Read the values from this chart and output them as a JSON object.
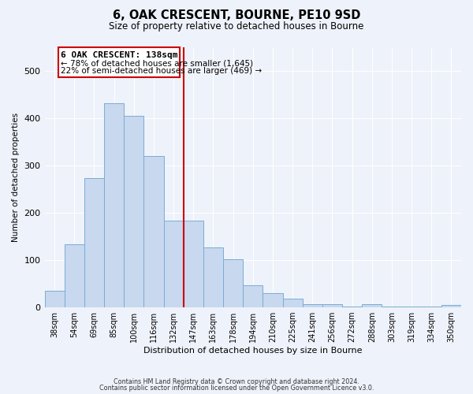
{
  "title": "6, OAK CRESCENT, BOURNE, PE10 9SD",
  "subtitle": "Size of property relative to detached houses in Bourne",
  "xlabel": "Distribution of detached houses by size in Bourne",
  "ylabel": "Number of detached properties",
  "bar_labels": [
    "38sqm",
    "54sqm",
    "69sqm",
    "85sqm",
    "100sqm",
    "116sqm",
    "132sqm",
    "147sqm",
    "163sqm",
    "178sqm",
    "194sqm",
    "210sqm",
    "225sqm",
    "241sqm",
    "256sqm",
    "272sqm",
    "288sqm",
    "303sqm",
    "319sqm",
    "334sqm",
    "350sqm"
  ],
  "bar_values": [
    35,
    133,
    273,
    432,
    405,
    320,
    184,
    184,
    126,
    102,
    46,
    30,
    19,
    7,
    6,
    2,
    7,
    2,
    2,
    2,
    5
  ],
  "bar_color": "#c8d8ee",
  "bar_edge_color": "#7aadd4",
  "line_x_index": 6.5,
  "annotation_line1": "6 OAK CRESCENT: 138sqm",
  "annotation_line2": "← 78% of detached houses are smaller (1,645)",
  "annotation_line3": "22% of semi-detached houses are larger (469) →",
  "vline_color": "#cc0000",
  "ylim": [
    0,
    550
  ],
  "footer1": "Contains HM Land Registry data © Crown copyright and database right 2024.",
  "footer2": "Contains public sector information licensed under the Open Government Licence v3.0.",
  "background_color": "#eef2fa"
}
